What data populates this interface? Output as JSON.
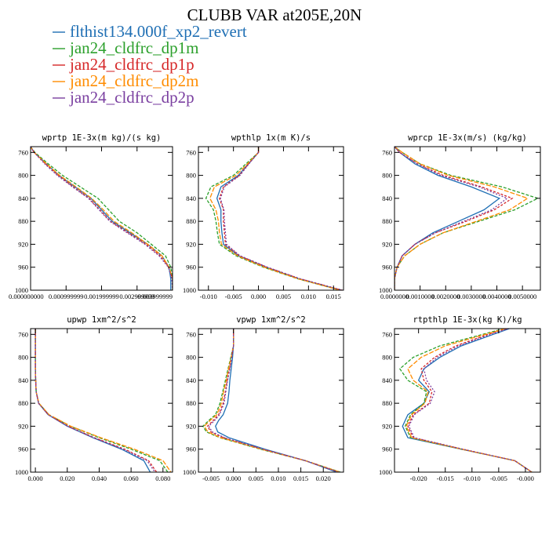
{
  "figure": {
    "title": "CLUBB VAR at205E,20N"
  },
  "legend": [
    {
      "label": "flthist134.000f_xp2_revert",
      "color": "#1f6fb4",
      "dash": ""
    },
    {
      "label": "jan24_cldfrc_dp1m",
      "color": "#2ca02c",
      "dash": "4,2"
    },
    {
      "label": "jan24_cldfrc_dp1p",
      "color": "#d62728",
      "dash": "3,2"
    },
    {
      "label": "jan24_cldfrc_dp2m",
      "color": "#ff8c00",
      "dash": "6,2"
    },
    {
      "label": "jan24_cldfrc_dp2p",
      "color": "#7a3fa0",
      "dash": "2,2"
    }
  ],
  "chart_data": [
    {
      "type": "line",
      "title": "wprtp  1E-3x(m kg)/(s kg)",
      "xticks": [
        "0.000000000",
        "0.000999999",
        "0.001999999",
        "0.002999999",
        "0.003999999"
      ],
      "xtick_values": [
        0,
        0.000999999,
        0.001999999,
        0.002999999,
        0.003999999
      ],
      "xlim": [
        0,
        0.004
      ],
      "ylim": [
        1000,
        750
      ],
      "yticks": [
        760,
        800,
        840,
        880,
        920,
        960,
        1000
      ],
      "y": [
        750,
        760,
        780,
        800,
        820,
        840,
        860,
        880,
        900,
        920,
        940,
        960,
        980,
        1000
      ],
      "series": [
        {
          "name": "flthist134.000f_xp2_revert",
          "values": [
            0.0,
            0.0001,
            0.00045,
            0.0008,
            0.00125,
            0.0017,
            0.002,
            0.0023,
            0.0028,
            0.0033,
            0.0037,
            0.0039,
            0.00395,
            0.00395
          ]
        },
        {
          "name": "jan24_cldfrc_dp1m",
          "values": [
            0.0,
            0.00012,
            0.0005,
            0.0009,
            0.0014,
            0.0019,
            0.0022,
            0.0025,
            0.003,
            0.0034,
            0.0038,
            0.00395,
            0.004,
            0.004
          ]
        },
        {
          "name": "jan24_cldfrc_dp1p",
          "values": [
            0.0,
            0.0001,
            0.00042,
            0.00078,
            0.0012,
            0.00165,
            0.00195,
            0.00225,
            0.00275,
            0.00325,
            0.00365,
            0.0039,
            0.004,
            0.004
          ]
        },
        {
          "name": "jan24_cldfrc_dp2m",
          "values": [
            0.0,
            0.0001,
            0.00045,
            0.00082,
            0.00128,
            0.00172,
            0.00205,
            0.00235,
            0.00285,
            0.0033,
            0.0037,
            0.0039,
            0.004,
            0.004
          ]
        },
        {
          "name": "jan24_cldfrc_dp2p",
          "values": [
            0.0,
            0.0001,
            0.0004,
            0.00075,
            0.00118,
            0.00163,
            0.00193,
            0.00223,
            0.00272,
            0.00322,
            0.00362,
            0.00388,
            0.00398,
            0.004
          ]
        }
      ]
    },
    {
      "type": "line",
      "title": "wpthlp  1x(m K)/s",
      "xticks": [
        "-0.010",
        "-0.005",
        "0.000",
        "0.005",
        "0.010",
        "0.015"
      ],
      "xtick_values": [
        -0.01,
        -0.005,
        0,
        0.005,
        0.01,
        0.015
      ],
      "xlim": [
        -0.012,
        0.017
      ],
      "ylim": [
        1000,
        750
      ],
      "yticks": [
        760,
        800,
        840,
        880,
        920,
        960,
        1000
      ],
      "y": [
        750,
        760,
        780,
        800,
        820,
        840,
        860,
        880,
        900,
        920,
        940,
        960,
        980,
        1000
      ],
      "series": [
        {
          "name": "flthist134.000f_xp2_revert",
          "values": [
            0.0,
            0.0,
            -0.002,
            -0.004,
            -0.0075,
            -0.0083,
            -0.0075,
            -0.0075,
            -0.0073,
            -0.007,
            -0.004,
            0.0015,
            0.008,
            0.0165
          ]
        },
        {
          "name": "jan24_cldfrc_dp1m",
          "values": [
            0.0,
            0.0,
            -0.0025,
            -0.005,
            -0.0095,
            -0.0105,
            -0.009,
            -0.0085,
            -0.0082,
            -0.0078,
            -0.0045,
            0.001,
            0.0078,
            0.0163
          ]
        },
        {
          "name": "jan24_cldfrc_dp1p",
          "values": [
            0.0,
            0.0,
            -0.002,
            -0.0038,
            -0.007,
            -0.0078,
            -0.007,
            -0.007,
            -0.0068,
            -0.0066,
            -0.0038,
            0.0017,
            0.0082,
            0.0167
          ]
        },
        {
          "name": "jan24_cldfrc_dp2m",
          "values": [
            0.0,
            0.0,
            -0.0022,
            -0.0045,
            -0.0088,
            -0.0097,
            -0.0085,
            -0.008,
            -0.0078,
            -0.0074,
            -0.0042,
            0.0012,
            0.0079,
            0.0164
          ]
        },
        {
          "name": "jan24_cldfrc_dp2p",
          "values": [
            0.0,
            0.0,
            -0.0019,
            -0.0037,
            -0.0068,
            -0.0076,
            -0.0069,
            -0.0068,
            -0.0066,
            -0.0064,
            -0.0037,
            0.0018,
            0.0083,
            0.0168
          ]
        }
      ]
    },
    {
      "type": "line",
      "title": "wprcp  1E-3x(m/s) (kg/kg)",
      "xticks": [
        "0.0000000",
        "0.0010000",
        "0.0020000",
        "0.0030000",
        "0.0040000",
        "0.0050000"
      ],
      "xtick_values": [
        0,
        0.001,
        0.002,
        0.003,
        0.004,
        0.005
      ],
      "xlim": [
        0,
        0.0057
      ],
      "ylim": [
        1000,
        750
      ],
      "yticks": [
        760,
        800,
        840,
        880,
        920,
        960,
        1000
      ],
      "y": [
        750,
        760,
        780,
        800,
        820,
        840,
        860,
        880,
        900,
        920,
        940,
        960,
        980,
        1000
      ],
      "series": [
        {
          "name": "flthist134.000f_xp2_revert",
          "values": [
            0.0,
            0.0002,
            0.0008,
            0.0017,
            0.003,
            0.0041,
            0.0035,
            0.0025,
            0.0015,
            0.0008,
            0.0003,
            0.0001,
            0.0,
            0.0
          ]
        },
        {
          "name": "jan24_cldfrc_dp1m",
          "values": [
            0.0,
            0.0003,
            0.001,
            0.0022,
            0.0042,
            0.0056,
            0.0047,
            0.0033,
            0.0019,
            0.001,
            0.0004,
            0.0001,
            0.0,
            0.0
          ]
        },
        {
          "name": "jan24_cldfrc_dp1p",
          "values": [
            0.0,
            0.0002,
            0.0009,
            0.0019,
            0.0034,
            0.0046,
            0.0039,
            0.0028,
            0.0016,
            0.0008,
            0.0003,
            0.0001,
            0.0,
            0.0
          ]
        },
        {
          "name": "jan24_cldfrc_dp2m",
          "values": [
            0.0,
            0.0003,
            0.001,
            0.0021,
            0.0039,
            0.0052,
            0.0045,
            0.0032,
            0.0019,
            0.001,
            0.0004,
            0.0001,
            0.0,
            0.0
          ]
        },
        {
          "name": "jan24_cldfrc_dp2p",
          "values": [
            0.0,
            0.0002,
            0.0009,
            0.0018,
            0.0033,
            0.0044,
            0.0038,
            0.0027,
            0.0016,
            0.0008,
            0.0003,
            0.0001,
            0.0,
            0.0
          ]
        }
      ]
    },
    {
      "type": "line",
      "title": "upwp  1xm^2/s^2",
      "xticks": [
        "0.000",
        "0.020",
        "0.040",
        "0.060",
        "0.080"
      ],
      "xtick_values": [
        0,
        0.02,
        0.04,
        0.06,
        0.08
      ],
      "xlim": [
        -0.003,
        0.086
      ],
      "ylim": [
        1000,
        750
      ],
      "yticks": [
        760,
        800,
        840,
        880,
        920,
        960,
        1000
      ],
      "y": [
        750,
        760,
        780,
        800,
        820,
        840,
        860,
        880,
        900,
        920,
        940,
        960,
        980,
        1000
      ],
      "series": [
        {
          "name": "flthist134.000f_xp2_revert",
          "values": [
            0.0,
            0.0,
            0.0,
            0.0,
            0.0,
            0.0002,
            0.0005,
            0.002,
            0.008,
            0.02,
            0.036,
            0.054,
            0.068,
            0.072
          ]
        },
        {
          "name": "jan24_cldfrc_dp1m",
          "values": [
            0.0,
            0.0,
            0.0,
            0.0,
            0.0,
            0.0002,
            0.0005,
            0.0022,
            0.0085,
            0.022,
            0.04,
            0.06,
            0.078,
            0.083
          ]
        },
        {
          "name": "jan24_cldfrc_dp1p",
          "values": [
            0.0,
            0.0,
            0.0,
            0.0,
            0.0,
            0.0002,
            0.0005,
            0.002,
            0.0082,
            0.0205,
            0.037,
            0.056,
            0.071,
            0.076
          ]
        },
        {
          "name": "jan24_cldfrc_dp2m",
          "values": [
            0.0,
            0.0,
            0.0,
            0.0,
            0.0,
            0.0002,
            0.0005,
            0.0022,
            0.0086,
            0.0222,
            0.041,
            0.062,
            0.08,
            0.085
          ]
        },
        {
          "name": "jan24_cldfrc_dp2p",
          "values": [
            0.0,
            0.0,
            0.0,
            0.0,
            0.0,
            0.0002,
            0.0005,
            0.002,
            0.008,
            0.0202,
            0.0365,
            0.055,
            0.07,
            0.075
          ]
        }
      ]
    },
    {
      "type": "line",
      "title": "vpwp  1xm^2/s^2",
      "xticks": [
        "-0.005",
        "0.000",
        "0.005",
        "0.010",
        "0.015",
        "0.020"
      ],
      "xtick_values": [
        -0.005,
        0,
        0.005,
        0.01,
        0.015,
        0.02
      ],
      "xlim": [
        -0.0078,
        0.0245
      ],
      "ylim": [
        1000,
        750
      ],
      "yticks": [
        760,
        800,
        840,
        880,
        920,
        960,
        1000
      ],
      "y": [
        750,
        760,
        780,
        800,
        820,
        840,
        860,
        880,
        900,
        910,
        920,
        930,
        940,
        960,
        980,
        1000
      ],
      "series": [
        {
          "name": "flthist134.000f_xp2_revert",
          "values": [
            0.0,
            0.0,
            0.0,
            -0.0002,
            -0.0005,
            -0.0008,
            -0.001,
            -0.0013,
            -0.0023,
            -0.0033,
            -0.004,
            -0.0035,
            -0.001,
            0.007,
            0.016,
            0.023
          ]
        },
        {
          "name": "jan24_cldfrc_dp1m",
          "values": [
            0.0,
            0.0,
            0.0,
            -0.0006,
            -0.0012,
            -0.0018,
            -0.0024,
            -0.003,
            -0.004,
            -0.0055,
            -0.0068,
            -0.006,
            -0.003,
            0.006,
            0.016,
            0.0238
          ]
        },
        {
          "name": "jan24_cldfrc_dp1p",
          "values": [
            0.0,
            0.0,
            0.0,
            -0.0004,
            -0.0009,
            -0.0014,
            -0.0018,
            -0.0023,
            -0.0033,
            -0.0045,
            -0.0058,
            -0.005,
            -0.0022,
            0.0065,
            0.016,
            0.0235
          ]
        },
        {
          "name": "jan24_cldfrc_dp2m",
          "values": [
            0.0,
            0.0,
            0.0,
            -0.0005,
            -0.0011,
            -0.0016,
            -0.0022,
            -0.0027,
            -0.0037,
            -0.0052,
            -0.0065,
            -0.0057,
            -0.0028,
            0.0062,
            0.016,
            0.0237
          ]
        },
        {
          "name": "jan24_cldfrc_dp2p",
          "values": [
            0.0,
            0.0,
            0.0,
            -0.0004,
            -0.0008,
            -0.0013,
            -0.0017,
            -0.0021,
            -0.0031,
            -0.0042,
            -0.0055,
            -0.0047,
            -0.002,
            0.0066,
            0.016,
            0.0234
          ]
        }
      ]
    },
    {
      "type": "line",
      "title": "rtpthlp  1E-3x(kg K)/kg",
      "xticks": [
        "-0.020",
        "-0.015",
        "-0.010",
        "-0.005",
        "-0.000"
      ],
      "xtick_values": [
        -0.02,
        -0.015,
        -0.01,
        -0.005,
        0
      ],
      "xlim": [
        -0.0245,
        0.0028
      ],
      "ylim": [
        1000,
        750
      ],
      "yticks": [
        760,
        800,
        840,
        880,
        920,
        960,
        1000
      ],
      "y": [
        750,
        760,
        780,
        800,
        820,
        840,
        860,
        880,
        900,
        920,
        940,
        960,
        980,
        1000
      ],
      "series": [
        {
          "name": "flthist134.000f_xp2_revert",
          "values": [
            -0.003,
            -0.006,
            -0.012,
            -0.016,
            -0.019,
            -0.02,
            -0.018,
            -0.019,
            -0.022,
            -0.023,
            -0.022,
            -0.012,
            -0.002,
            0.0012
          ]
        },
        {
          "name": "jan24_cldfrc_dp1m",
          "values": [
            -0.004,
            -0.008,
            -0.016,
            -0.021,
            -0.0235,
            -0.022,
            -0.0185,
            -0.019,
            -0.0215,
            -0.0225,
            -0.0215,
            -0.012,
            -0.002,
            0.0012
          ]
        },
        {
          "name": "jan24_cldfrc_dp1p",
          "values": [
            -0.0035,
            -0.007,
            -0.013,
            -0.017,
            -0.0195,
            -0.019,
            -0.0175,
            -0.018,
            -0.021,
            -0.022,
            -0.021,
            -0.0118,
            -0.002,
            0.0012
          ]
        },
        {
          "name": "jan24_cldfrc_dp2m",
          "values": [
            -0.0038,
            -0.0075,
            -0.015,
            -0.0195,
            -0.022,
            -0.021,
            -0.0182,
            -0.0188,
            -0.0213,
            -0.0223,
            -0.0213,
            -0.0119,
            -0.002,
            0.0012
          ]
        },
        {
          "name": "jan24_cldfrc_dp2p",
          "values": [
            -0.0032,
            -0.0065,
            -0.0125,
            -0.0165,
            -0.019,
            -0.0185,
            -0.017,
            -0.0178,
            -0.0208,
            -0.0218,
            -0.0208,
            -0.0117,
            -0.002,
            0.0012
          ]
        }
      ]
    }
  ]
}
